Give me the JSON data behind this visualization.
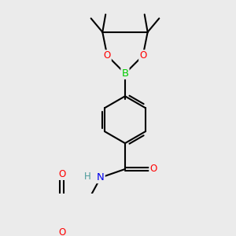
{
  "bg_color": "#ebebeb",
  "bond_color": "#000000",
  "bond_width": 1.5,
  "atom_colors": {
    "B": "#00cc00",
    "O": "#ff0000",
    "N": "#0000ee",
    "H_N": "#4a9a9a"
  },
  "font_size": 8.5,
  "fig_size": [
    3.0,
    3.0
  ],
  "dpi": 100
}
